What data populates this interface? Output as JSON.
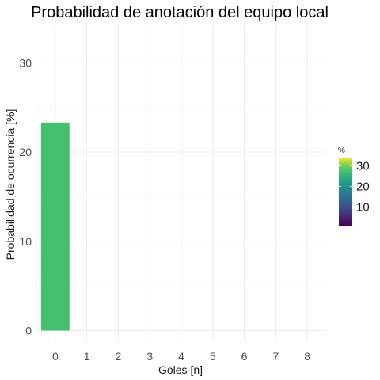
{
  "chart_data": {
    "type": "bar",
    "title": "Probabilidad de anotación del equipo local",
    "xlabel": "Goles [n]",
    "ylabel": "Probabilidad de ocurrencia [%]",
    "categories": [
      "0",
      "1",
      "2",
      "3",
      "4",
      "5",
      "6",
      "7",
      "8"
    ],
    "values": [
      23.3,
      0,
      0,
      0,
      0,
      0,
      0,
      0,
      0
    ],
    "ylim": [
      -1.2,
      34.2
    ],
    "yticks": [
      "0",
      "10",
      "20",
      "30"
    ],
    "grid": true,
    "legend": {
      "title": "%",
      "placement": "right",
      "ticks": [
        "10",
        "20",
        "30"
      ],
      "range": [
        1,
        34
      ],
      "colorscale": "viridis"
    },
    "bar_color": "#44bf70"
  }
}
